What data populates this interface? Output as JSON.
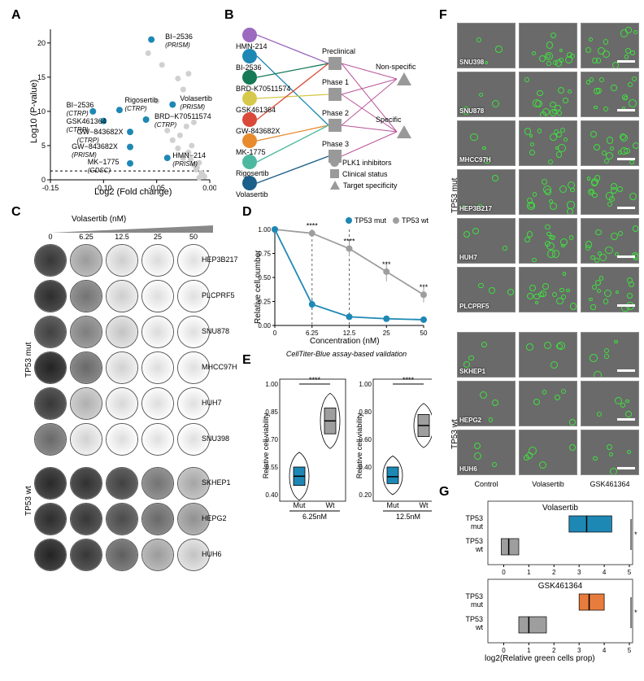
{
  "panel_labels": {
    "A": "A",
    "B": "B",
    "C": "C",
    "D": "D",
    "E": "E",
    "F": "F",
    "G": "G"
  },
  "colors": {
    "tp53mut": "#1e88b5",
    "tp53wt": "#9e9e9e",
    "grey_pt": "#d0d0d0",
    "gsk": "#e87c3c",
    "hmn214": "#9c6bbf",
    "bi2536": "#1e88b5",
    "brdk": "#157a55",
    "gsk461": "#d6c84a",
    "gw843": "#d94a3a",
    "mk1775": "#e88b2d",
    "rigo": "#4db8a0",
    "vola": "#1c5f8a",
    "clinical_grey": "#9a9a9a",
    "axis": "#000000",
    "bg": "#ffffff"
  },
  "panelA": {
    "xlabel": "Log2 (Fold change)",
    "ylabel": "Log10 (P-value)",
    "xlim": [
      -0.15,
      0.0
    ],
    "ylim": [
      0,
      22
    ],
    "xticks": [
      -0.15,
      -0.1,
      -0.05,
      0.0
    ],
    "yticks": [
      0,
      5,
      10,
      15,
      20
    ],
    "threshold_y": 1.3,
    "grey_points": [
      {
        "x": -0.005,
        "y": 0.5
      },
      {
        "x": -0.008,
        "y": 1.0
      },
      {
        "x": -0.012,
        "y": 1.8
      },
      {
        "x": -0.015,
        "y": 2.2
      },
      {
        "x": -0.01,
        "y": 2.5
      },
      {
        "x": -0.018,
        "y": 3.0
      },
      {
        "x": -0.025,
        "y": 3.2
      },
      {
        "x": -0.02,
        "y": 4.0
      },
      {
        "x": -0.03,
        "y": 4.6
      },
      {
        "x": -0.017,
        "y": 5.0
      },
      {
        "x": -0.035,
        "y": 5.8
      },
      {
        "x": -0.028,
        "y": 6.5
      },
      {
        "x": -0.04,
        "y": 7.2
      },
      {
        "x": -0.022,
        "y": 7.8
      },
      {
        "x": -0.015,
        "y": 8.4
      },
      {
        "x": -0.05,
        "y": 11.5
      },
      {
        "x": -0.025,
        "y": 13.2
      },
      {
        "x": -0.03,
        "y": 14.8
      },
      {
        "x": -0.02,
        "y": 15.5
      },
      {
        "x": -0.058,
        "y": 18.5
      },
      {
        "x": -0.045,
        "y": 16.8
      },
      {
        "x": -0.01,
        "y": 0.3
      },
      {
        "x": -0.007,
        "y": 0.8
      },
      {
        "x": -0.013,
        "y": 1.5
      }
    ],
    "blue_points": [
      {
        "x": -0.055,
        "y": 20.5,
        "label": "BI−2536",
        "sub": "(PRISM)",
        "lx": -0.042,
        "ly": 20.8
      },
      {
        "x": -0.035,
        "y": 11.0,
        "label": "Volasertib",
        "sub": "(PRISM)",
        "lx": -0.028,
        "ly": 11.8
      },
      {
        "x": -0.085,
        "y": 10.2,
        "label": "Rigosertib",
        "sub": "(CTRP)",
        "lx": -0.08,
        "ly": 11.5
      },
      {
        "x": -0.11,
        "y": 10.0,
        "label": "BI−2536",
        "sub": "(CTRP)",
        "lx": -0.135,
        "ly": 10.8
      },
      {
        "x": -0.06,
        "y": 8.8,
        "label": "BRD−K70511574",
        "sub": "(CTRP)",
        "lx": -0.052,
        "ly": 9.2
      },
      {
        "x": -0.1,
        "y": 8.6,
        "label": "GSK461364",
        "sub": "(CTRP)",
        "lx": -0.135,
        "ly": 8.5
      },
      {
        "x": -0.075,
        "y": 7.0,
        "label": "GW−843682X",
        "sub": "(CTRP)",
        "lx": -0.125,
        "ly": 6.9
      },
      {
        "x": -0.075,
        "y": 4.8,
        "label": "GW−843682X",
        "sub": "(PRISM)",
        "lx": -0.13,
        "ly": 4.8
      },
      {
        "x": -0.04,
        "y": 3.2,
        "label": "HMN−214",
        "sub": "(PRISM)",
        "lx": -0.035,
        "ly": 3.5
      },
      {
        "x": -0.075,
        "y": 2.4,
        "label": "MK−1775",
        "sub": "(GDSC)",
        "lx": -0.115,
        "ly": 2.5
      }
    ]
  },
  "panelB": {
    "inhibitors": [
      {
        "name": "HMN-214",
        "colorKey": "hmn214",
        "y": 0
      },
      {
        "name": "BI-2536",
        "colorKey": "bi2536",
        "y": 26
      },
      {
        "name": "BRD-K70511574",
        "colorKey": "brdk",
        "y": 52
      },
      {
        "name": "GSK461364",
        "colorKey": "gsk461",
        "y": 78
      },
      {
        "name": "GW-843682X",
        "colorKey": "gw843",
        "y": 104
      },
      {
        "name": "MK-1775",
        "colorKey": "mk1775",
        "y": 130
      },
      {
        "name": "Rigosertib",
        "colorKey": "rigo",
        "y": 156
      },
      {
        "name": "Volasertib",
        "colorKey": "vola",
        "y": 182
      }
    ],
    "clinical": [
      {
        "name": "Preclinical",
        "y": 36
      },
      {
        "name": "Phase 1",
        "y": 74
      },
      {
        "name": "Phase 2",
        "y": 112
      },
      {
        "name": "Phase 3",
        "y": 150
      }
    ],
    "specificity": [
      {
        "name": "Non-specific",
        "y": 55
      },
      {
        "name": "Specific",
        "y": 120
      }
    ],
    "edges_ic": [
      {
        "from": 0,
        "to": 0
      },
      {
        "from": 1,
        "to": 2
      },
      {
        "from": 2,
        "to": 0
      },
      {
        "from": 3,
        "to": 1
      },
      {
        "from": 4,
        "to": 0
      },
      {
        "from": 5,
        "to": 2
      },
      {
        "from": 6,
        "to": 2
      },
      {
        "from": 7,
        "to": 3
      }
    ],
    "edges_cs": [
      {
        "from": 0,
        "to": 0
      },
      {
        "from": 0,
        "to": 1
      },
      {
        "from": 1,
        "to": 0
      },
      {
        "from": 1,
        "to": 1
      },
      {
        "from": 2,
        "to": 0
      },
      {
        "from": 2,
        "to": 1
      },
      {
        "from": 3,
        "to": 1
      }
    ],
    "legend": [
      {
        "shape": "circle",
        "label": "PLK1 inhibitors"
      },
      {
        "shape": "square",
        "label": "Clinical status"
      },
      {
        "shape": "triangle",
        "label": "Target specificity"
      }
    ]
  },
  "panelC": {
    "title": "Volasertib (nM)",
    "concentrations": [
      "0",
      "6.25",
      "12.5",
      "25",
      "50"
    ],
    "mut_label": "TP53 mut",
    "wt_label": "TP53 wt",
    "mut_lines": [
      {
        "name": "HEP3B217",
        "densities": [
          0.85,
          0.35,
          0.1,
          0.03,
          0.01
        ]
      },
      {
        "name": "PLCPRF5",
        "densities": [
          0.9,
          0.55,
          0.1,
          0.02,
          0.01
        ]
      },
      {
        "name": "SNU878",
        "densities": [
          0.8,
          0.5,
          0.15,
          0.03,
          0.01
        ]
      },
      {
        "name": "MHCC97H",
        "densities": [
          0.95,
          0.6,
          0.08,
          0.02,
          0.01
        ]
      },
      {
        "name": "HUH7",
        "densities": [
          0.85,
          0.25,
          0.05,
          0.02,
          0.01
        ]
      },
      {
        "name": "SNU398",
        "densities": [
          0.6,
          0.08,
          0.02,
          0.01,
          0.01
        ]
      }
    ],
    "wt_lines": [
      {
        "name": "SKHEP1",
        "densities": [
          0.92,
          0.88,
          0.8,
          0.55,
          0.3
        ]
      },
      {
        "name": "HEPG2",
        "densities": [
          0.9,
          0.85,
          0.75,
          0.6,
          0.4
        ]
      },
      {
        "name": "HUH6",
        "densities": [
          0.95,
          0.85,
          0.65,
          0.35,
          0.15
        ]
      }
    ]
  },
  "panelD": {
    "xlabel": "Concentration (nM)",
    "ylabel": "Relative cell number",
    "legend_mut": "TP53 mut",
    "legend_wt": "TP53 wt",
    "xvals": [
      0,
      6.25,
      12.5,
      25,
      50
    ],
    "mut": [
      1.0,
      0.22,
      0.09,
      0.07,
      0.06
    ],
    "wt": [
      1.0,
      0.96,
      0.8,
      0.56,
      0.32
    ],
    "err_mut": [
      0,
      0.05,
      0.03,
      0.02,
      0.02
    ],
    "err_wt": [
      0,
      0.03,
      0.08,
      0.1,
      0.08
    ],
    "sig": [
      "",
      "****",
      "****",
      "***",
      "***"
    ],
    "guides": [
      6.25,
      12.5
    ],
    "callout": "CellTiter-Blue assay-based validation"
  },
  "panelE": {
    "ylabel": "Relative cell viability",
    "groups": [
      {
        "conc": "6.25nM",
        "mut_med": 0.5,
        "mut_q1": 0.45,
        "mut_q3": 0.55,
        "wt_med": 0.8,
        "wt_q1": 0.73,
        "wt_q3": 0.87,
        "ylim": [
          0.4,
          1.0
        ],
        "sig": "****"
      },
      {
        "conc": "12.5nM",
        "mut_med": 0.33,
        "mut_q1": 0.28,
        "mut_q3": 0.4,
        "wt_med": 0.7,
        "wt_q1": 0.62,
        "wt_q3": 0.78,
        "ylim": [
          0.2,
          1.0
        ],
        "sig": "****"
      }
    ],
    "xlabels": [
      "Mut",
      "Wt"
    ]
  },
  "panelF": {
    "col_labels": [
      "Control",
      "Volasertib",
      "GSK461364"
    ],
    "mut_label": "TP53 mut",
    "wt_label": "TP53 wt",
    "mut_rows": [
      "SNU398",
      "SNU878",
      "MHCC97H",
      "HEP3B217",
      "HUH7",
      "PLCPRF5"
    ],
    "wt_rows": [
      "SKHEP1",
      "HEPG2",
      "HUH6"
    ],
    "green_density": {
      "mut": {
        "Control": 3,
        "Volasertib": 14,
        "GSK461364": 14
      },
      "wt": {
        "Control": 3,
        "Volasertib": 5,
        "GSK461364": 5
      }
    }
  },
  "panelG": {
    "xlabel": "log2(Relative green cells prop)",
    "drugs": [
      {
        "name": "Volasertib",
        "colorKey": "tp53mut",
        "mut_q1": 2.6,
        "mut_med": 3.3,
        "mut_q3": 4.3,
        "wt_q1": -0.1,
        "wt_med": 0.2,
        "wt_q3": 0.6,
        "sig": "****"
      },
      {
        "name": "GSK461364",
        "colorKey": "gsk",
        "mut_q1": 3.0,
        "mut_med": 3.4,
        "mut_q3": 4.0,
        "wt_q1": 0.6,
        "wt_med": 1.0,
        "wt_q3": 1.7,
        "sig": "****"
      }
    ],
    "xlim": [
      -0.5,
      5
    ],
    "xticks": [
      0,
      1,
      2,
      3,
      4,
      5
    ],
    "ylabels": [
      "TP53\nmut",
      "TP53\nwt"
    ]
  }
}
